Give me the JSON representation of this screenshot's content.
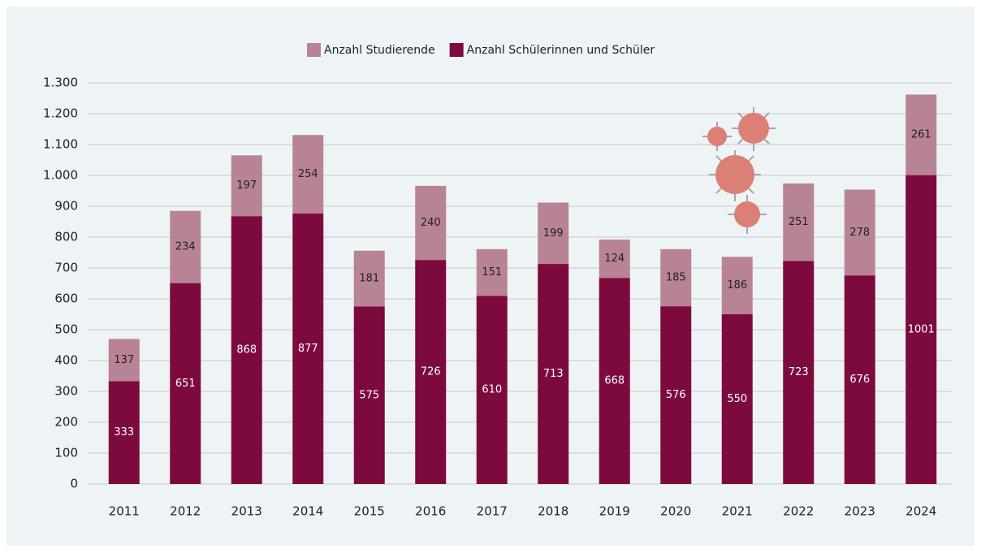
{
  "chart_data": {
    "type": "stacked_bar",
    "categories": [
      "2011",
      "2012",
      "2013",
      "2014",
      "2015",
      "2016",
      "2017",
      "2018",
      "2019",
      "2020",
      "2021",
      "2022",
      "2023",
      "2024"
    ],
    "series": [
      {
        "name": "Anzahl Studierende",
        "color": "#b98396",
        "values": [
          137,
          234,
          197,
          254,
          181,
          240,
          151,
          199,
          124,
          185,
          186,
          251,
          278,
          261
        ]
      },
      {
        "name": "Anzahl Schülerinnen und Schüler",
        "color": "#7d0a3e",
        "values": [
          333,
          651,
          868,
          877,
          575,
          726,
          610,
          713,
          668,
          576,
          550,
          723,
          676,
          1001
        ]
      }
    ],
    "ylim": [
      0,
      1300
    ],
    "yticks": [
      0,
      100,
      200,
      300,
      400,
      500,
      600,
      700,
      800,
      900,
      {
        "value": 1000,
        "label": "1.000"
      },
      {
        "value": 1100,
        "label": "1.100"
      },
      {
        "value": 1200,
        "label": "1.200"
      },
      {
        "value": 1300,
        "label": "1.300"
      }
    ],
    "grid": true
  }
}
